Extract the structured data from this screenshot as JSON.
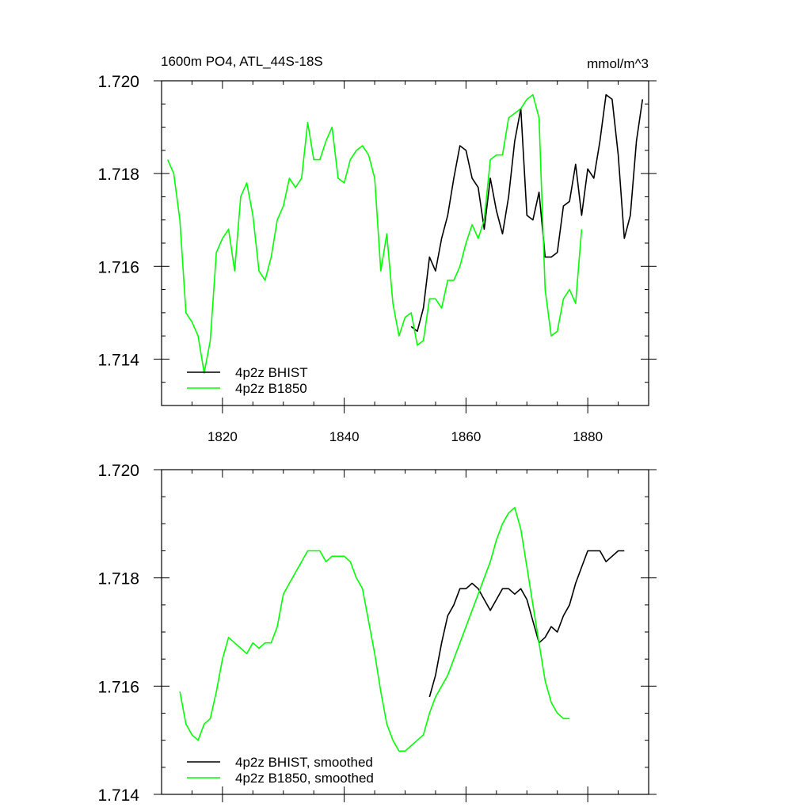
{
  "chart_data": [
    {
      "type": "line",
      "title": "1600m PO4, ATL_44S-18S",
      "units": "mmol/m^3",
      "xlim": [
        1810,
        1890
      ],
      "ylim": [
        1.713,
        1.72
      ],
      "x_ticks": [
        1820,
        1840,
        1860,
        1880
      ],
      "x_tick_labels": [
        "1820",
        "1840",
        "1860",
        "1880"
      ],
      "y_ticks": [
        1.714,
        1.716,
        1.718,
        1.72
      ],
      "y_tick_labels": [
        "1.714",
        "1.716",
        "1.718",
        "1.720"
      ],
      "legend_position": "bottom-left",
      "series": [
        {
          "name": "4p2z BHIST",
          "color": "#000000",
          "x": [
            1851,
            1852,
            1853,
            1854,
            1855,
            1856,
            1857,
            1858,
            1859,
            1860,
            1861,
            1862,
            1863,
            1864,
            1865,
            1866,
            1867,
            1868,
            1869,
            1870,
            1871,
            1872,
            1873,
            1874,
            1875,
            1876,
            1877,
            1878,
            1879,
            1880,
            1881,
            1882,
            1883,
            1884,
            1885,
            1886,
            1887,
            1888,
            1889
          ],
          "y": [
            1.7147,
            1.7146,
            1.7151,
            1.7162,
            1.7159,
            1.7166,
            1.7171,
            1.7179,
            1.7186,
            1.7185,
            1.7179,
            1.7177,
            1.7168,
            1.7179,
            1.7172,
            1.7167,
            1.7175,
            1.7187,
            1.7194,
            1.7171,
            1.717,
            1.7176,
            1.7162,
            1.7162,
            1.7163,
            1.7173,
            1.7174,
            1.7182,
            1.7171,
            1.7181,
            1.7179,
            1.7187,
            1.7197,
            1.7196,
            1.7184,
            1.7166,
            1.7171,
            1.7187,
            1.7196
          ]
        },
        {
          "name": "4p2z B1850",
          "color": "#00ff00",
          "x": [
            1811,
            1812,
            1813,
            1814,
            1815,
            1816,
            1817,
            1818,
            1819,
            1820,
            1821,
            1822,
            1823,
            1824,
            1825,
            1826,
            1827,
            1828,
            1829,
            1830,
            1831,
            1832,
            1833,
            1834,
            1835,
            1836,
            1837,
            1838,
            1839,
            1840,
            1841,
            1842,
            1843,
            1844,
            1845,
            1846,
            1847,
            1848,
            1849,
            1850,
            1851,
            1852,
            1853,
            1854,
            1855,
            1856,
            1857,
            1858,
            1859,
            1860,
            1861,
            1862,
            1863,
            1864,
            1865,
            1866,
            1867,
            1868,
            1869,
            1870,
            1871,
            1872,
            1873,
            1874,
            1875,
            1876,
            1877,
            1878,
            1879
          ],
          "y": [
            1.7183,
            1.718,
            1.717,
            1.715,
            1.7148,
            1.7145,
            1.7137,
            1.7144,
            1.7163,
            1.7166,
            1.7168,
            1.7159,
            1.7175,
            1.7178,
            1.7171,
            1.7159,
            1.7157,
            1.7162,
            1.717,
            1.7173,
            1.7179,
            1.7177,
            1.7179,
            1.7191,
            1.7183,
            1.7183,
            1.7187,
            1.719,
            1.7179,
            1.7178,
            1.7183,
            1.7185,
            1.7186,
            1.7184,
            1.7179,
            1.7159,
            1.7167,
            1.7152,
            1.7145,
            1.7149,
            1.715,
            1.7143,
            1.7144,
            1.7153,
            1.7153,
            1.7151,
            1.7157,
            1.7157,
            1.716,
            1.7165,
            1.7169,
            1.7166,
            1.717,
            1.7183,
            1.7184,
            1.7184,
            1.7192,
            1.7193,
            1.7194,
            1.7196,
            1.7197,
            1.7192,
            1.7155,
            1.7145,
            1.7146,
            1.7153,
            1.7155,
            1.7152,
            1.7168
          ]
        }
      ]
    },
    {
      "type": "line",
      "xlim": [
        1810,
        1890
      ],
      "ylim": [
        1.714,
        1.72
      ],
      "x_ticks": [
        1820,
        1840,
        1860,
        1880
      ],
      "y_ticks": [
        1.714,
        1.716,
        1.718,
        1.72
      ],
      "y_tick_labels": [
        "1.714",
        "1.716",
        "1.718",
        "1.720"
      ],
      "legend_position": "bottom-left",
      "series": [
        {
          "name": "4p2z BHIST, smoothed",
          "color": "#000000",
          "x": [
            1854,
            1855,
            1856,
            1857,
            1858,
            1859,
            1860,
            1861,
            1862,
            1863,
            1864,
            1865,
            1866,
            1867,
            1868,
            1869,
            1870,
            1871,
            1872,
            1873,
            1874,
            1875,
            1876,
            1877,
            1878,
            1879,
            1880,
            1881,
            1882,
            1883,
            1884,
            1885,
            1886
          ],
          "y": [
            1.7158,
            1.7162,
            1.7168,
            1.7173,
            1.7175,
            1.7178,
            1.7178,
            1.7179,
            1.7178,
            1.7176,
            1.7174,
            1.7176,
            1.7178,
            1.7178,
            1.7177,
            1.7178,
            1.7176,
            1.7172,
            1.7168,
            1.7169,
            1.7171,
            1.717,
            1.7173,
            1.7175,
            1.7179,
            1.7182,
            1.7185,
            1.7185,
            1.7185,
            1.7183,
            1.7184,
            1.7185,
            1.7185
          ]
        },
        {
          "name": "4p2z B1850, smoothed",
          "color": "#00ff00",
          "x": [
            1813,
            1814,
            1815,
            1816,
            1817,
            1818,
            1819,
            1820,
            1821,
            1822,
            1823,
            1824,
            1825,
            1826,
            1827,
            1828,
            1829,
            1830,
            1831,
            1832,
            1833,
            1834,
            1835,
            1836,
            1837,
            1838,
            1839,
            1840,
            1841,
            1842,
            1843,
            1844,
            1845,
            1846,
            1847,
            1848,
            1849,
            1850,
            1851,
            1852,
            1853,
            1854,
            1855,
            1856,
            1857,
            1858,
            1859,
            1860,
            1861,
            1862,
            1863,
            1864,
            1865,
            1866,
            1867,
            1868,
            1869,
            1870,
            1871,
            1872,
            1873,
            1874,
            1875,
            1876,
            1877
          ],
          "y": [
            1.7159,
            1.7153,
            1.7151,
            1.715,
            1.7153,
            1.7154,
            1.7159,
            1.7165,
            1.7169,
            1.7168,
            1.7167,
            1.7166,
            1.7168,
            1.7167,
            1.7168,
            1.7168,
            1.7171,
            1.7177,
            1.7179,
            1.7181,
            1.7183,
            1.7185,
            1.7185,
            1.7185,
            1.7183,
            1.7184,
            1.7184,
            1.7184,
            1.7183,
            1.718,
            1.7178,
            1.7172,
            1.7166,
            1.7159,
            1.7153,
            1.715,
            1.7148,
            1.7148,
            1.7149,
            1.715,
            1.7151,
            1.7155,
            1.7158,
            1.716,
            1.7162,
            1.7165,
            1.7168,
            1.7171,
            1.7174,
            1.7177,
            1.718,
            1.7183,
            1.7187,
            1.719,
            1.7192,
            1.7193,
            1.7189,
            1.7182,
            1.7175,
            1.7168,
            1.7161,
            1.7157,
            1.7155,
            1.7154,
            1.7154
          ]
        }
      ]
    }
  ]
}
